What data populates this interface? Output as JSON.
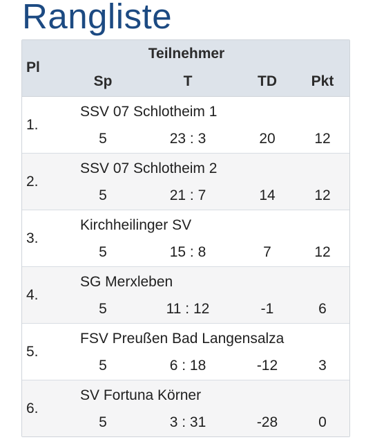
{
  "title": "Rangliste",
  "header": {
    "pl": "Pl",
    "team": "Teilnehmer",
    "sp": "Sp",
    "t": "T",
    "td": "TD",
    "pkt": "Pkt"
  },
  "rows": [
    {
      "pl": "1.",
      "team": "SSV 07 Schlotheim 1",
      "sp": "5",
      "t": "23 : 3",
      "td": "20",
      "pkt": "12"
    },
    {
      "pl": "2.",
      "team": "SSV 07 Schlotheim 2",
      "sp": "5",
      "t": "21 : 7",
      "td": "14",
      "pkt": "12"
    },
    {
      "pl": "3.",
      "team": "Kirchheilinger SV",
      "sp": "5",
      "t": "15 : 8",
      "td": "7",
      "pkt": "12"
    },
    {
      "pl": "4.",
      "team": "SG Merxleben",
      "sp": "5",
      "t": "11 : 12",
      "td": "-1",
      "pkt": "6"
    },
    {
      "pl": "5.",
      "team": "FSV Preußen Bad Langensalza",
      "sp": "5",
      "t": "6 : 18",
      "td": "-12",
      "pkt": "3"
    },
    {
      "pl": "6.",
      "team": "SV Fortuna Körner",
      "sp": "5",
      "t": "3 : 31",
      "td": "-28",
      "pkt": "0"
    }
  ]
}
